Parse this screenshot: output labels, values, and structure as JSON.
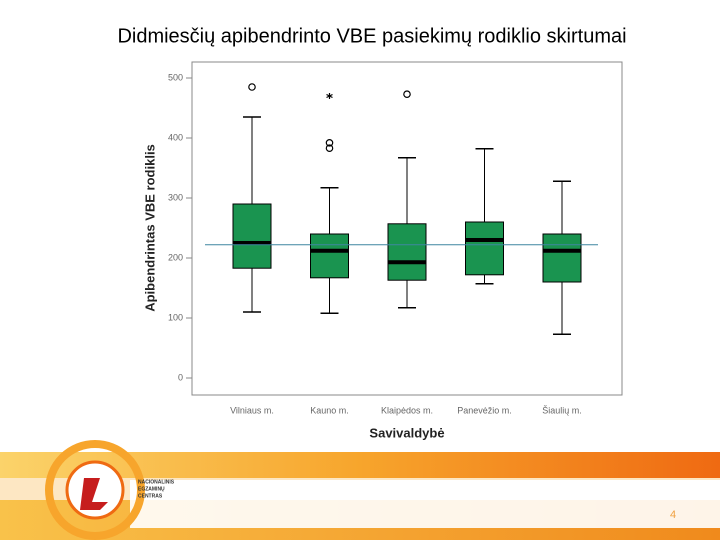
{
  "chart_data": {
    "type": "boxplot",
    "title": "Didmiesčių apibendrinto VBE pasiekimų rodiklio skirtumai",
    "x_label": "Savivaldybė",
    "y_label": "Apibendrintas VBE rodiklis",
    "categories": [
      "Vilniaus m.",
      "Kauno m.",
      "Klaipėdos m.",
      "Panevėžio m.",
      "Šiaulių m."
    ],
    "boxes": [
      {
        "min": 110,
        "q1": 183,
        "median": 225,
        "q3": 290,
        "max": 435,
        "outliers": [
          485
        ],
        "extremes": []
      },
      {
        "min": 108,
        "q1": 167,
        "median": 212,
        "q3": 240,
        "max": 317,
        "outliers": [
          392,
          383
        ],
        "extremes": [
          470
        ]
      },
      {
        "min": 117,
        "q1": 163,
        "median": 193,
        "q3": 257,
        "max": 367,
        "outliers": [
          473
        ],
        "extremes": []
      },
      {
        "min": 157,
        "q1": 172,
        "median": 230,
        "q3": 260,
        "max": 382,
        "outliers": [],
        "extremes": []
      },
      {
        "min": 73,
        "q1": 160,
        "median": 212,
        "q3": 240,
        "max": 328,
        "outliers": [],
        "extremes": []
      }
    ],
    "color": "#1a9450",
    "reference_line": 222,
    "reference_color": "#3f86a0",
    "ylim": [
      0,
      500
    ],
    "yticks": [
      0,
      100,
      200,
      300,
      400,
      500
    ]
  },
  "slide": {
    "page_number": "4",
    "logo_text": [
      "NACIONALINIS",
      "EGZAMINŲ",
      "CENTRAS"
    ]
  }
}
